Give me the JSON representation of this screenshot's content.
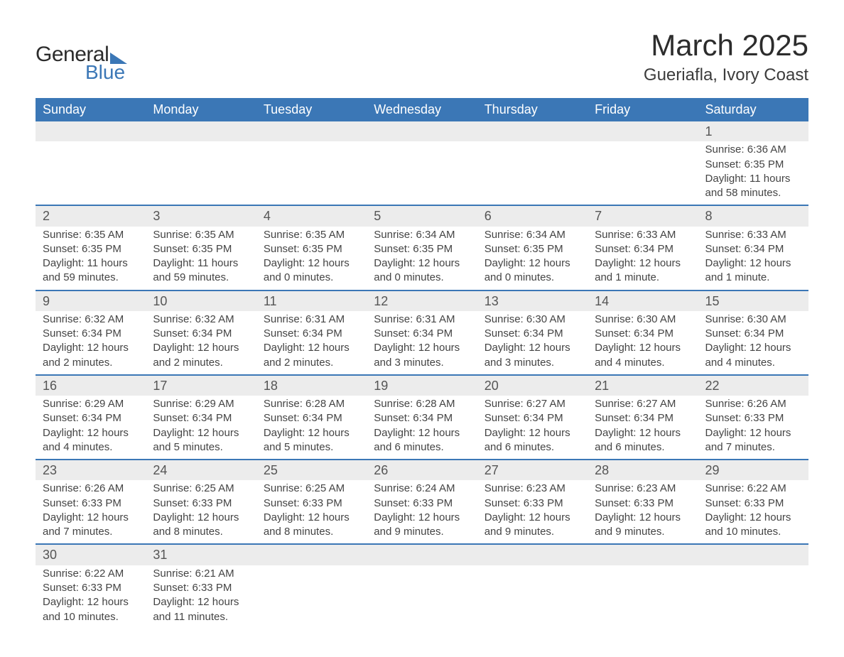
{
  "logo": {
    "general": "General",
    "blue": "Blue"
  },
  "title": "March 2025",
  "location": "Gueriafla, Ivory Coast",
  "days_of_week": [
    "Sunday",
    "Monday",
    "Tuesday",
    "Wednesday",
    "Thursday",
    "Friday",
    "Saturday"
  ],
  "colors": {
    "header_bg": "#3b77b6",
    "header_text": "#ffffff",
    "daynum_bg": "#ececec",
    "row_border": "#3b77b6",
    "body_text": "#404040"
  },
  "weeks": [
    [
      null,
      null,
      null,
      null,
      null,
      null,
      {
        "n": "1",
        "sr": "Sunrise: 6:36 AM",
        "ss": "Sunset: 6:35 PM",
        "d1": "Daylight: 11 hours",
        "d2": "and 58 minutes."
      }
    ],
    [
      {
        "n": "2",
        "sr": "Sunrise: 6:35 AM",
        "ss": "Sunset: 6:35 PM",
        "d1": "Daylight: 11 hours",
        "d2": "and 59 minutes."
      },
      {
        "n": "3",
        "sr": "Sunrise: 6:35 AM",
        "ss": "Sunset: 6:35 PM",
        "d1": "Daylight: 11 hours",
        "d2": "and 59 minutes."
      },
      {
        "n": "4",
        "sr": "Sunrise: 6:35 AM",
        "ss": "Sunset: 6:35 PM",
        "d1": "Daylight: 12 hours",
        "d2": "and 0 minutes."
      },
      {
        "n": "5",
        "sr": "Sunrise: 6:34 AM",
        "ss": "Sunset: 6:35 PM",
        "d1": "Daylight: 12 hours",
        "d2": "and 0 minutes."
      },
      {
        "n": "6",
        "sr": "Sunrise: 6:34 AM",
        "ss": "Sunset: 6:35 PM",
        "d1": "Daylight: 12 hours",
        "d2": "and 0 minutes."
      },
      {
        "n": "7",
        "sr": "Sunrise: 6:33 AM",
        "ss": "Sunset: 6:34 PM",
        "d1": "Daylight: 12 hours",
        "d2": "and 1 minute."
      },
      {
        "n": "8",
        "sr": "Sunrise: 6:33 AM",
        "ss": "Sunset: 6:34 PM",
        "d1": "Daylight: 12 hours",
        "d2": "and 1 minute."
      }
    ],
    [
      {
        "n": "9",
        "sr": "Sunrise: 6:32 AM",
        "ss": "Sunset: 6:34 PM",
        "d1": "Daylight: 12 hours",
        "d2": "and 2 minutes."
      },
      {
        "n": "10",
        "sr": "Sunrise: 6:32 AM",
        "ss": "Sunset: 6:34 PM",
        "d1": "Daylight: 12 hours",
        "d2": "and 2 minutes."
      },
      {
        "n": "11",
        "sr": "Sunrise: 6:31 AM",
        "ss": "Sunset: 6:34 PM",
        "d1": "Daylight: 12 hours",
        "d2": "and 2 minutes."
      },
      {
        "n": "12",
        "sr": "Sunrise: 6:31 AM",
        "ss": "Sunset: 6:34 PM",
        "d1": "Daylight: 12 hours",
        "d2": "and 3 minutes."
      },
      {
        "n": "13",
        "sr": "Sunrise: 6:30 AM",
        "ss": "Sunset: 6:34 PM",
        "d1": "Daylight: 12 hours",
        "d2": "and 3 minutes."
      },
      {
        "n": "14",
        "sr": "Sunrise: 6:30 AM",
        "ss": "Sunset: 6:34 PM",
        "d1": "Daylight: 12 hours",
        "d2": "and 4 minutes."
      },
      {
        "n": "15",
        "sr": "Sunrise: 6:30 AM",
        "ss": "Sunset: 6:34 PM",
        "d1": "Daylight: 12 hours",
        "d2": "and 4 minutes."
      }
    ],
    [
      {
        "n": "16",
        "sr": "Sunrise: 6:29 AM",
        "ss": "Sunset: 6:34 PM",
        "d1": "Daylight: 12 hours",
        "d2": "and 4 minutes."
      },
      {
        "n": "17",
        "sr": "Sunrise: 6:29 AM",
        "ss": "Sunset: 6:34 PM",
        "d1": "Daylight: 12 hours",
        "d2": "and 5 minutes."
      },
      {
        "n": "18",
        "sr": "Sunrise: 6:28 AM",
        "ss": "Sunset: 6:34 PM",
        "d1": "Daylight: 12 hours",
        "d2": "and 5 minutes."
      },
      {
        "n": "19",
        "sr": "Sunrise: 6:28 AM",
        "ss": "Sunset: 6:34 PM",
        "d1": "Daylight: 12 hours",
        "d2": "and 6 minutes."
      },
      {
        "n": "20",
        "sr": "Sunrise: 6:27 AM",
        "ss": "Sunset: 6:34 PM",
        "d1": "Daylight: 12 hours",
        "d2": "and 6 minutes."
      },
      {
        "n": "21",
        "sr": "Sunrise: 6:27 AM",
        "ss": "Sunset: 6:34 PM",
        "d1": "Daylight: 12 hours",
        "d2": "and 6 minutes."
      },
      {
        "n": "22",
        "sr": "Sunrise: 6:26 AM",
        "ss": "Sunset: 6:33 PM",
        "d1": "Daylight: 12 hours",
        "d2": "and 7 minutes."
      }
    ],
    [
      {
        "n": "23",
        "sr": "Sunrise: 6:26 AM",
        "ss": "Sunset: 6:33 PM",
        "d1": "Daylight: 12 hours",
        "d2": "and 7 minutes."
      },
      {
        "n": "24",
        "sr": "Sunrise: 6:25 AM",
        "ss": "Sunset: 6:33 PM",
        "d1": "Daylight: 12 hours",
        "d2": "and 8 minutes."
      },
      {
        "n": "25",
        "sr": "Sunrise: 6:25 AM",
        "ss": "Sunset: 6:33 PM",
        "d1": "Daylight: 12 hours",
        "d2": "and 8 minutes."
      },
      {
        "n": "26",
        "sr": "Sunrise: 6:24 AM",
        "ss": "Sunset: 6:33 PM",
        "d1": "Daylight: 12 hours",
        "d2": "and 9 minutes."
      },
      {
        "n": "27",
        "sr": "Sunrise: 6:23 AM",
        "ss": "Sunset: 6:33 PM",
        "d1": "Daylight: 12 hours",
        "d2": "and 9 minutes."
      },
      {
        "n": "28",
        "sr": "Sunrise: 6:23 AM",
        "ss": "Sunset: 6:33 PM",
        "d1": "Daylight: 12 hours",
        "d2": "and 9 minutes."
      },
      {
        "n": "29",
        "sr": "Sunrise: 6:22 AM",
        "ss": "Sunset: 6:33 PM",
        "d1": "Daylight: 12 hours",
        "d2": "and 10 minutes."
      }
    ],
    [
      {
        "n": "30",
        "sr": "Sunrise: 6:22 AM",
        "ss": "Sunset: 6:33 PM",
        "d1": "Daylight: 12 hours",
        "d2": "and 10 minutes."
      },
      {
        "n": "31",
        "sr": "Sunrise: 6:21 AM",
        "ss": "Sunset: 6:33 PM",
        "d1": "Daylight: 12 hours",
        "d2": "and 11 minutes."
      },
      null,
      null,
      null,
      null,
      null
    ]
  ]
}
